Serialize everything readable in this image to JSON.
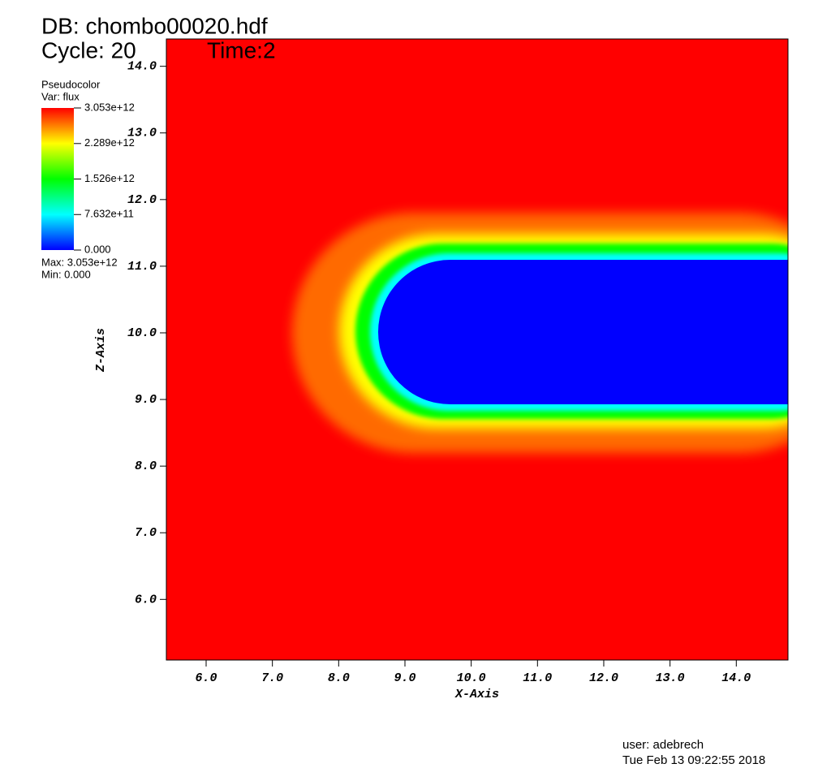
{
  "chart_data": {
    "type": "pseudocolor",
    "db_label": "DB: chombo00020.hdf",
    "cycle_label": "Cycle: 20",
    "time_label": "Time:2",
    "legend": {
      "title": "Pseudocolor",
      "var": "Var: flux",
      "lim": [
        0,
        3053000000000
      ],
      "ticks": [
        {
          "value": 3053000000000,
          "label": "3.053e+12"
        },
        {
          "value": 2289000000000,
          "label": "2.289e+12"
        },
        {
          "value": 1526000000000,
          "label": "1.526e+12"
        },
        {
          "value": 763200000000,
          "label": "7.632e+11"
        },
        {
          "value": 0,
          "label": "0.000"
        }
      ],
      "max": "Max:  3.053e+12",
      "min": "Min:  0.000"
    },
    "xlabel": "X-Axis",
    "ylabel": "Z-Axis",
    "xlim": [
      5.4,
      14.78
    ],
    "ylim": [
      5.09,
      14.41
    ],
    "xticks": [
      {
        "value": 6,
        "label": "6.0"
      },
      {
        "value": 7,
        "label": "7.0"
      },
      {
        "value": 8,
        "label": "8.0"
      },
      {
        "value": 9,
        "label": "9.0"
      },
      {
        "value": 10,
        "label": "10.0"
      },
      {
        "value": 11,
        "label": "11.0"
      },
      {
        "value": 12,
        "label": "12.0"
      },
      {
        "value": 13,
        "label": "13.0"
      },
      {
        "value": 14,
        "label": "14.0"
      }
    ],
    "yticks": [
      {
        "value": 6,
        "label": "6.0"
      },
      {
        "value": 7,
        "label": "7.0"
      },
      {
        "value": 8,
        "label": "8.0"
      },
      {
        "value": 9,
        "label": "9.0"
      },
      {
        "value": 10,
        "label": "10.0"
      },
      {
        "value": 11,
        "label": "11.0"
      },
      {
        "value": 12,
        "label": "12.0"
      },
      {
        "value": 13,
        "label": "13.0"
      },
      {
        "value": 14,
        "label": "14.0"
      }
    ],
    "user": "user: adebrech",
    "date": "Tue Feb 13 09:22:55 2018"
  }
}
